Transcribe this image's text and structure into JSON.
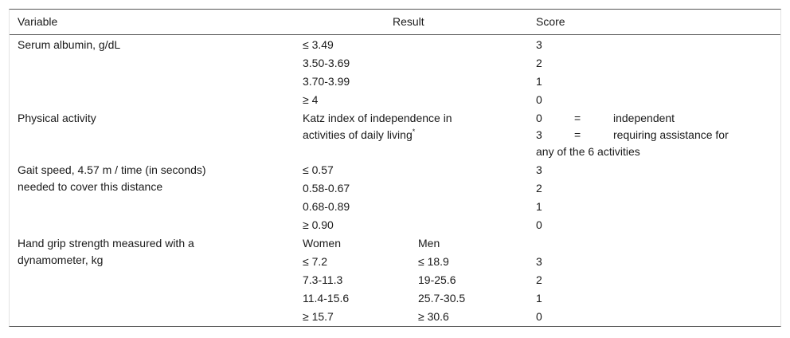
{
  "headers": {
    "variable": "Variable",
    "result": "Result",
    "score": "Score"
  },
  "albumin": {
    "label": "Serum albumin, g/dL",
    "rows": [
      {
        "result": "≤ 3.49",
        "score": "3"
      },
      {
        "result": "3.50-3.69",
        "score": "2"
      },
      {
        "result": "3.70-3.99",
        "score": "1"
      },
      {
        "result": "≥ 4",
        "score": "0"
      }
    ]
  },
  "activity": {
    "label": "Physical activity",
    "result_line1": "Katz index of independence in",
    "result_line2": "activities of daily living",
    "footnote_mark": "*",
    "score_rows": [
      {
        "score": "0",
        "eq": "=",
        "text": "independent"
      },
      {
        "score": "3",
        "eq": "=",
        "text": "requiring assistance for"
      }
    ],
    "score_continuation": "any of the 6 activities"
  },
  "gait": {
    "label_line1": "Gait speed, 4.57 m / time (in seconds)",
    "label_line2": "needed to cover this distance",
    "rows": [
      {
        "result": "≤ 0.57",
        "score": "3"
      },
      {
        "result": "0.58-0.67",
        "score": "2"
      },
      {
        "result": "0.68-0.89",
        "score": "1"
      },
      {
        "result": "≥ 0.90",
        "score": "0"
      }
    ]
  },
  "grip": {
    "label_line1": "Hand grip strength measured with a",
    "label_line2": "dynamometer, kg",
    "women_header": "Women",
    "men_header": "Men",
    "rows": [
      {
        "women": "≤ 7.2",
        "men": "≤ 18.9",
        "score": "3"
      },
      {
        "women": "7.3-11.3",
        "men": "19-25.6",
        "score": "2"
      },
      {
        "women": "11.4-15.6",
        "men": "25.7-30.5",
        "score": "1"
      },
      {
        "women": "≥ 15.7",
        "men": "≥ 30.6",
        "score": "0"
      }
    ]
  }
}
